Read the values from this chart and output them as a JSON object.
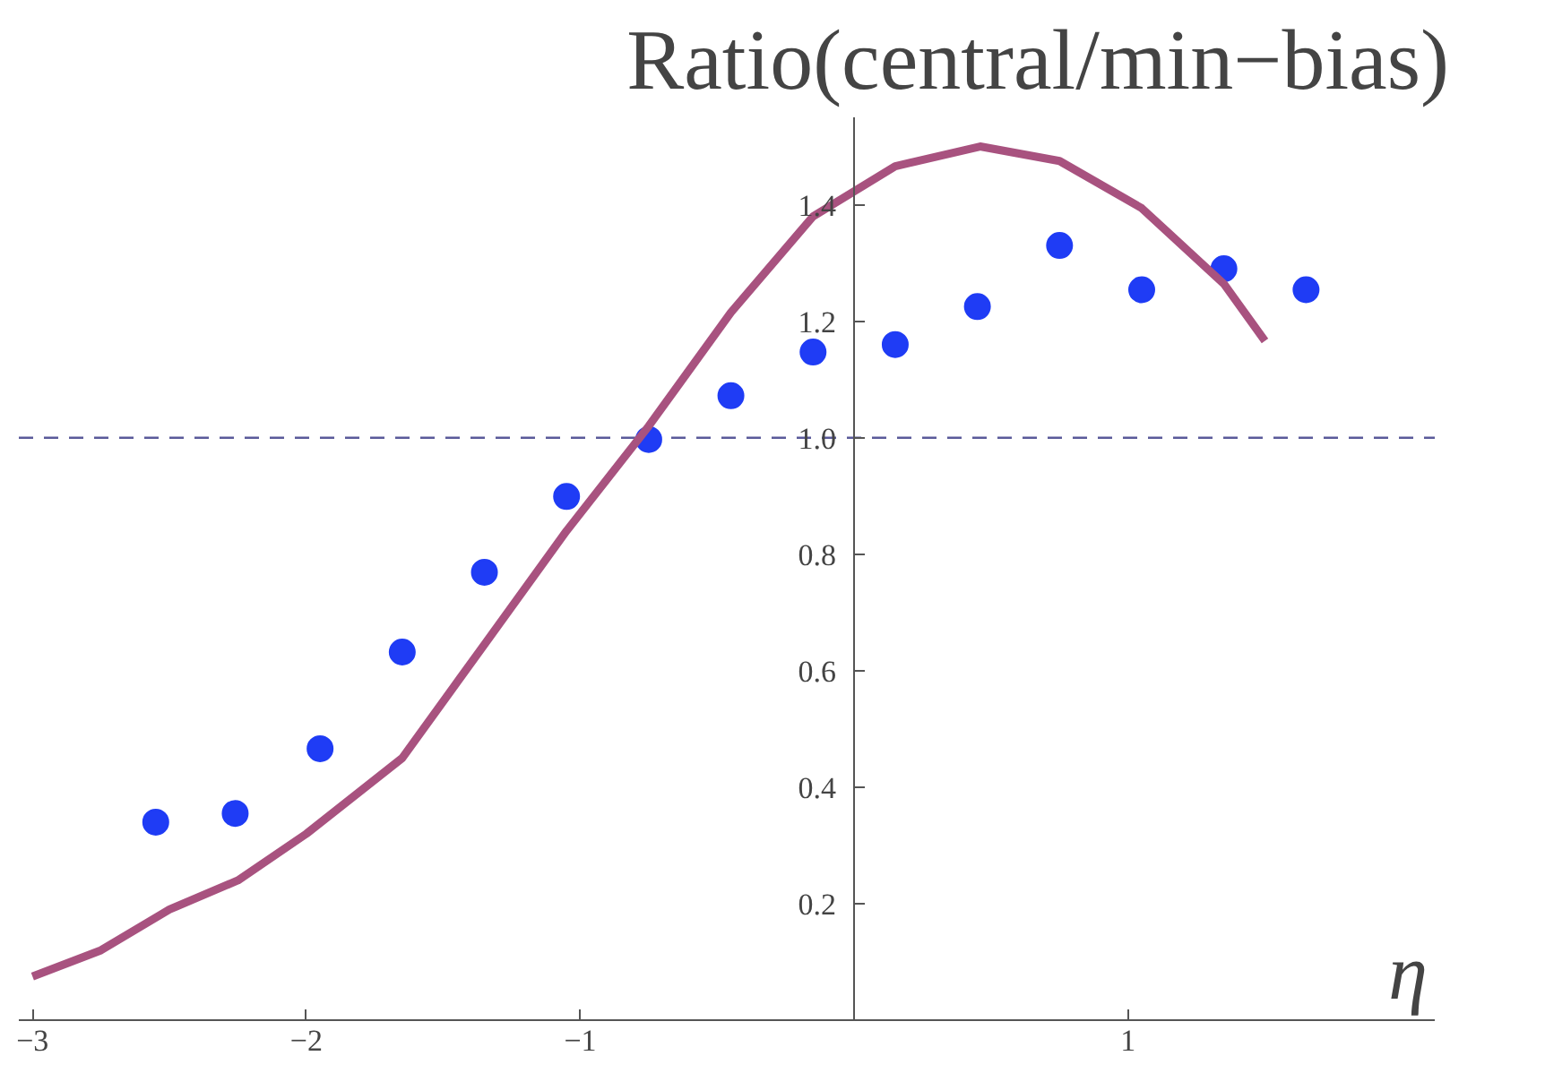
{
  "chart_data": {
    "type": "scatter",
    "ylabel": "Ratio(central/min−bias)",
    "xlabel": "η",
    "xlim": [
      -3.05,
      2.12
    ],
    "ylim": [
      0,
      1.55
    ],
    "xticks": [
      {
        "value": -3,
        "label": "−3"
      },
      {
        "value": -2,
        "label": "−2"
      },
      {
        "value": -1,
        "label": "−1"
      },
      1
    ],
    "yticks": [
      0.2,
      0.4,
      0.6,
      0.8,
      {
        "value": 1.0,
        "label": "1.0"
      },
      1.2,
      1.4
    ],
    "grid": false,
    "series": [
      {
        "marker": "circle",
        "color": "#1f3cf5",
        "x": [
          -2.55,
          -2.26,
          -1.95,
          -1.65,
          -1.35,
          -1.05,
          -0.75,
          -0.45,
          -0.15,
          0.15,
          0.45,
          0.75,
          1.05,
          1.35,
          1.65
        ],
        "values": [
          0.34,
          0.355,
          0.466,
          0.632,
          0.769,
          0.899,
          0.997,
          1.072,
          1.147,
          1.16,
          1.225,
          1.33,
          1.254,
          1.29,
          1.254
        ]
      },
      {
        "type": "line",
        "marker": "none",
        "color": "#a8527f",
        "line_style": "solid",
        "x": [
          -3,
          -2.75,
          -2.5,
          -2.25,
          -2,
          -1.65,
          -1.35,
          -1.05,
          -0.75,
          -0.45,
          -0.15,
          0.15,
          0.46,
          0.75,
          1.05,
          1.35,
          1.5
        ],
        "values": [
          0.075,
          0.12,
          0.19,
          0.24,
          0.32,
          0.45,
          0.645,
          0.84,
          1.02,
          1.215,
          1.38,
          1.466,
          1.5,
          1.475,
          1.394,
          1.264,
          1.166
        ]
      }
    ],
    "ref_lines": [
      {
        "axis": "y",
        "value": 1.0,
        "color": "#5a5a9a",
        "line_style": "dashed"
      }
    ]
  }
}
